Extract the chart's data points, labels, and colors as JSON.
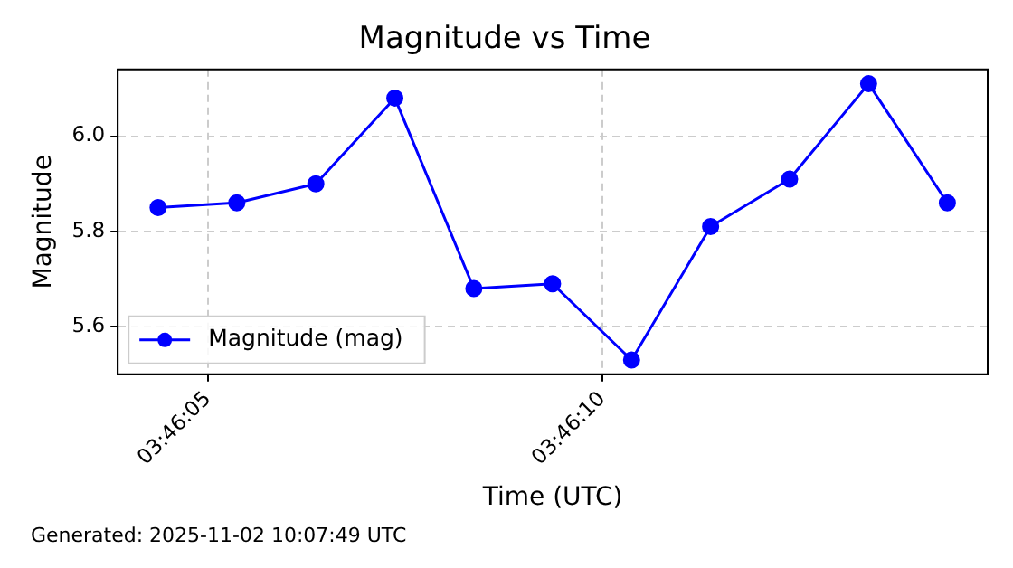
{
  "chart_data": {
    "type": "line",
    "title": "Magnitude vs Time",
    "xlabel": "Time (UTC)",
    "ylabel": "Magnitude",
    "x": [
      3.767881,
      3.768158,
      3.768436,
      3.768714,
      3.768992,
      3.769269,
      3.769547,
      3.769825,
      3.770103,
      3.770381,
      3.770658
    ],
    "series": [
      {
        "name": "Magnitude (mag)",
        "color": "#0000ff",
        "values": [
          5.85,
          5.86,
          5.9,
          6.08,
          5.68,
          5.69,
          5.53,
          5.81,
          5.91,
          6.11,
          5.86
        ]
      }
    ],
    "xlim": [
      3.767739,
      3.7708
    ],
    "xticks": [
      {
        "value": 3.768056,
        "label": "03:46:05"
      },
      {
        "value": 3.769444,
        "label": "03:46:10"
      }
    ],
    "ylim": [
      5.5,
      6.14
    ],
    "yticks": [
      {
        "value": 5.6,
        "label": "5.6"
      },
      {
        "value": 5.8,
        "label": "5.8"
      },
      {
        "value": 6.0,
        "label": "6.0"
      }
    ],
    "grid": true,
    "legend": "bottom left",
    "marker": "circle",
    "line_style": "solid",
    "annotations": [
      "Generated: 2025-11-02 10:07:49 UTC"
    ]
  }
}
